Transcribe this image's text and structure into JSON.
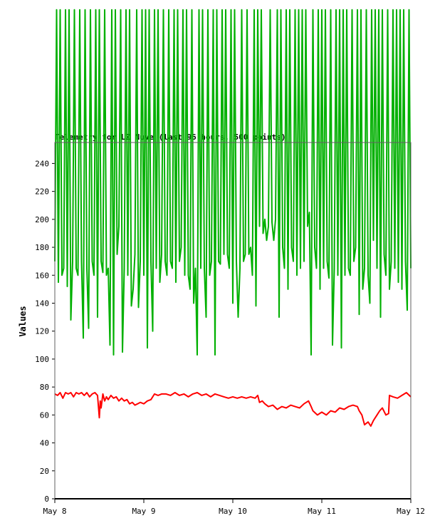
{
  "chart_data": {
    "type": "line",
    "title": "Telemetry for LZ Nuve (last 96 hours, 500 points)",
    "ylabel": "Values",
    "xlabel": "",
    "ylim": [
      0,
      255
    ],
    "yticks": [
      0,
      20,
      40,
      60,
      80,
      100,
      120,
      140,
      160,
      180,
      200,
      220,
      240
    ],
    "x_labels": [
      "May 8",
      "May 9",
      "May 10",
      "May 11",
      "May 12"
    ],
    "xlim_days": [
      0,
      4
    ],
    "grid": false,
    "colors": {
      "green": "#00b000",
      "red": "#ff0000"
    },
    "series": [
      {
        "color": "#00b000",
        "x": [
          0.0,
          0.02,
          0.04,
          0.06,
          0.08,
          0.1,
          0.12,
          0.14,
          0.16,
          0.18,
          0.2,
          0.22,
          0.24,
          0.26,
          0.28,
          0.3,
          0.32,
          0.34,
          0.36,
          0.38,
          0.4,
          0.42,
          0.44,
          0.46,
          0.48,
          0.5,
          0.52,
          0.54,
          0.56,
          0.58,
          0.6,
          0.62,
          0.64,
          0.66,
          0.68,
          0.7,
          0.72,
          0.74,
          0.76,
          0.78,
          0.8,
          0.82,
          0.84,
          0.86,
          0.88,
          0.9,
          0.92,
          0.94,
          0.96,
          0.98,
          1.0,
          1.02,
          1.04,
          1.06,
          1.08,
          1.1,
          1.12,
          1.14,
          1.16,
          1.18,
          1.2,
          1.22,
          1.24,
          1.26,
          1.28,
          1.3,
          1.32,
          1.34,
          1.36,
          1.38,
          1.4,
          1.42,
          1.44,
          1.46,
          1.48,
          1.5,
          1.52,
          1.54,
          1.56,
          1.58,
          1.6,
          1.62,
          1.64,
          1.66,
          1.68,
          1.7,
          1.72,
          1.74,
          1.76,
          1.78,
          1.8,
          1.82,
          1.84,
          1.86,
          1.88,
          1.9,
          1.92,
          1.94,
          1.96,
          1.98,
          2.0,
          2.02,
          2.04,
          2.06,
          2.08,
          2.1,
          2.12,
          2.14,
          2.16,
          2.18,
          2.2,
          2.22,
          2.24,
          2.26,
          2.28,
          2.3,
          2.32,
          2.34,
          2.36,
          2.38,
          2.4,
          2.42,
          2.44,
          2.46,
          2.48,
          2.5,
          2.52,
          2.54,
          2.56,
          2.58,
          2.6,
          2.62,
          2.64,
          2.66,
          2.68,
          2.7,
          2.72,
          2.74,
          2.76,
          2.78,
          2.8,
          2.82,
          2.84,
          2.86,
          2.88,
          2.9,
          2.92,
          2.94,
          2.96,
          2.98,
          3.0,
          3.02,
          3.04,
          3.06,
          3.08,
          3.1,
          3.12,
          3.14,
          3.16,
          3.18,
          3.2,
          3.22,
          3.24,
          3.26,
          3.28,
          3.3,
          3.32,
          3.34,
          3.36,
          3.38,
          3.4,
          3.42,
          3.44,
          3.46,
          3.48,
          3.5,
          3.52,
          3.54,
          3.56,
          3.58,
          3.6,
          3.62,
          3.64,
          3.66,
          3.68,
          3.7,
          3.72,
          3.74,
          3.76,
          3.78,
          3.8,
          3.82,
          3.84,
          3.86,
          3.88,
          3.9,
          3.92,
          3.94,
          3.96,
          3.98,
          4.0
        ],
        "y": [
          170,
          350,
          155,
          350,
          160,
          165,
          350,
          152,
          350,
          128,
          170,
          350,
          165,
          160,
          350,
          170,
          115,
          350,
          165,
          122,
          350,
          170,
          160,
          350,
          130,
          350,
          170,
          162,
          350,
          160,
          165,
          110,
          350,
          103,
          350,
          175,
          195,
          350,
          105,
          165,
          350,
          160,
          350,
          138,
          150,
          175,
          350,
          137,
          170,
          350,
          160,
          350,
          108,
          350,
          170,
          120,
          350,
          165,
          350,
          155,
          175,
          350,
          170,
          160,
          350,
          170,
          165,
          350,
          155,
          350,
          170,
          180,
          350,
          160,
          350,
          160,
          150,
          350,
          140,
          165,
          103,
          350,
          165,
          350,
          165,
          130,
          350,
          160,
          170,
          350,
          103,
          350,
          170,
          168,
          350,
          175,
          350,
          175,
          165,
          350,
          140,
          350,
          170,
          130,
          165,
          350,
          170,
          175,
          350,
          175,
          180,
          160,
          350,
          138,
          350,
          195,
          350,
          190,
          200,
          185,
          195,
          350,
          198,
          185,
          200,
          350,
          130,
          350,
          180,
          165,
          350,
          150,
          350,
          180,
          170,
          350,
          160,
          350,
          165,
          350,
          170,
          350,
          195,
          205,
          103,
          350,
          180,
          165,
          350,
          150,
          350,
          165,
          350,
          170,
          158,
          350,
          110,
          165,
          350,
          160,
          350,
          108,
          350,
          160,
          350,
          165,
          160,
          350,
          170,
          180,
          350,
          132,
          350,
          150,
          165,
          350,
          160,
          140,
          350,
          185,
          350,
          165,
          350,
          130,
          350,
          175,
          160,
          350,
          150,
          170,
          350,
          165,
          350,
          155,
          350,
          150,
          350,
          170,
          135,
          350,
          165
        ]
      },
      {
        "color": "#ff0000",
        "x": [
          0.0,
          0.03,
          0.06,
          0.09,
          0.12,
          0.15,
          0.18,
          0.21,
          0.24,
          0.27,
          0.3,
          0.33,
          0.36,
          0.39,
          0.42,
          0.45,
          0.48,
          0.5,
          0.51,
          0.52,
          0.54,
          0.56,
          0.58,
          0.6,
          0.63,
          0.66,
          0.69,
          0.72,
          0.75,
          0.78,
          0.81,
          0.84,
          0.87,
          0.9,
          0.93,
          0.96,
          1.0,
          1.04,
          1.08,
          1.12,
          1.16,
          1.2,
          1.25,
          1.3,
          1.35,
          1.4,
          1.45,
          1.5,
          1.55,
          1.6,
          1.65,
          1.7,
          1.75,
          1.8,
          1.85,
          1.9,
          1.95,
          2.0,
          2.05,
          2.1,
          2.15,
          2.2,
          2.25,
          2.28,
          2.3,
          2.33,
          2.36,
          2.4,
          2.45,
          2.5,
          2.55,
          2.6,
          2.65,
          2.7,
          2.75,
          2.8,
          2.85,
          2.88,
          2.9,
          2.95,
          3.0,
          3.05,
          3.1,
          3.15,
          3.2,
          3.25,
          3.3,
          3.35,
          3.4,
          3.42,
          3.45,
          3.48,
          3.52,
          3.55,
          3.58,
          3.62,
          3.65,
          3.68,
          3.72,
          3.75,
          3.76,
          3.8,
          3.85,
          3.9,
          3.95,
          4.0
        ],
        "y": [
          75,
          74,
          76,
          72,
          76,
          75,
          76,
          73,
          76,
          75,
          76,
          74,
          76,
          73,
          75,
          76,
          74,
          58,
          70,
          65,
          75,
          70,
          73,
          71,
          74,
          72,
          73,
          70,
          72,
          70,
          71,
          68,
          69,
          67,
          68,
          69,
          68,
          70,
          71,
          75,
          74,
          75,
          75,
          74,
          76,
          74,
          75,
          73,
          75,
          76,
          74,
          75,
          73,
          75,
          74,
          73,
          72,
          73,
          72,
          73,
          72,
          73,
          72,
          74,
          69,
          70,
          68,
          66,
          67,
          64,
          66,
          65,
          67,
          66,
          65,
          68,
          70,
          66,
          63,
          60,
          62,
          60,
          63,
          62,
          65,
          64,
          66,
          67,
          66,
          63,
          60,
          53,
          55,
          52,
          56,
          60,
          63,
          65,
          60,
          61,
          74,
          73,
          72,
          74,
          76,
          73
        ]
      }
    ]
  }
}
